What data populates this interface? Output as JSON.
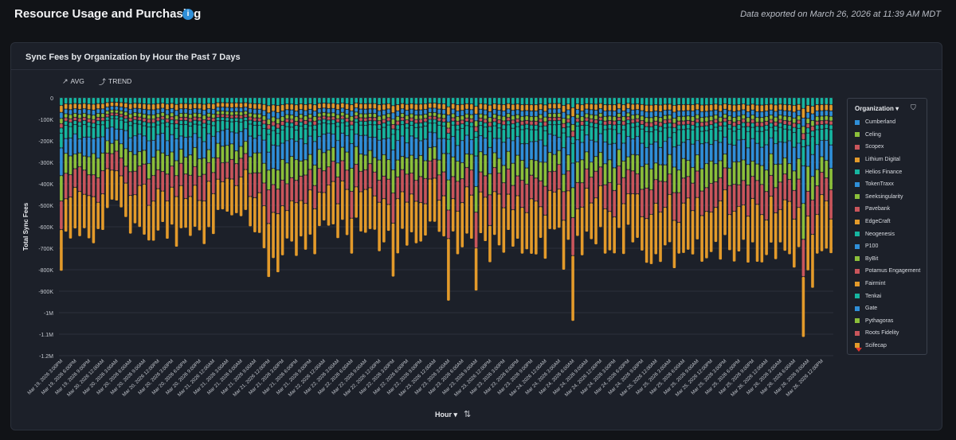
{
  "header": {
    "title": "Resource Usage and Purchasing",
    "info_icon": "i",
    "export_note": "Data exported on March 26, 2026 at 11:39 AM MDT"
  },
  "panel": {
    "title": "Sync Fees by Organization by Hour the Past 7 Days",
    "avg_label": "AVG",
    "trend_label": "TREND",
    "x_control_label": "Hour",
    "x_control_caret": "▾",
    "sort_icon": "⇅",
    "legend_title": "Organization",
    "legend_caret": "▾",
    "filter_icon": "⛉"
  },
  "chart_data": {
    "type": "bar",
    "stacked": true,
    "ylabel": "Total Sync Fees",
    "ylim": [
      -1200000,
      0
    ],
    "yticks": [
      0,
      -100000,
      -200000,
      -300000,
      -400000,
      -500000,
      -600000,
      -700000,
      -800000,
      -900000,
      -1000000,
      -1100000,
      -1200000
    ],
    "ytick_labels": [
      "0",
      "-100K",
      "-200K",
      "-300K",
      "-400K",
      "-500K",
      "-600K",
      "-700K",
      "-800K",
      "-900K",
      "-1M",
      "-1.1M",
      "-1.2M"
    ],
    "grid": true,
    "legend_position": "right",
    "bar_count": 168,
    "x_tick_labels": [
      "Mar 19, 2026 3:00PM",
      "Mar 19, 2026 6:00PM",
      "Mar 19, 2026 9:00PM",
      "Mar 20, 2026 12:00AM",
      "Mar 20, 2026 3:00AM",
      "Mar 20, 2026 6:00AM",
      "Mar 20, 2026 9:00AM",
      "Mar 20, 2026 12:00PM",
      "Mar 20, 2026 3:00PM",
      "Mar 20, 2026 6:00PM",
      "Mar 20, 2026 9:00PM",
      "Mar 21, 2026 12:00AM",
      "Mar 21, 2026 3:00AM",
      "Mar 21, 2026 6:00AM",
      "Mar 21, 2026 9:00AM",
      "Mar 21, 2026 12:00PM",
      "Mar 21, 2026 3:00PM",
      "Mar 21, 2026 6:00PM",
      "Mar 21, 2026 9:00PM",
      "Mar 22, 2026 12:00AM",
      "Mar 22, 2026 3:00AM",
      "Mar 22, 2026 6:00AM",
      "Mar 22, 2026 9:00AM",
      "Mar 22, 2026 12:00PM",
      "Mar 22, 2026 3:00PM",
      "Mar 22, 2026 6:00PM",
      "Mar 22, 2026 9:00PM",
      "Mar 23, 2026 12:00AM",
      "Mar 23, 2026 3:00AM",
      "Mar 23, 2026 6:00AM",
      "Mar 23, 2026 9:00AM",
      "Mar 23, 2026 12:00PM",
      "Mar 23, 2026 3:00PM",
      "Mar 23, 2026 6:00PM",
      "Mar 23, 2026 9:00PM",
      "Mar 24, 2026 12:00AM",
      "Mar 24, 2026 3:00AM",
      "Mar 24, 2026 6:00AM",
      "Mar 24, 2026 9:00AM",
      "Mar 24, 2026 12:00PM",
      "Mar 24, 2026 3:00PM",
      "Mar 24, 2026 6:00PM",
      "Mar 24, 2026 9:00PM",
      "Mar 25, 2026 12:00AM",
      "Mar 25, 2026 3:00AM",
      "Mar 25, 2026 6:00AM",
      "Mar 25, 2026 9:00AM",
      "Mar 25, 2026 12:00PM",
      "Mar 25, 2026 3:00PM",
      "Mar 25, 2026 6:00PM",
      "Mar 25, 2026 9:00PM",
      "Mar 26, 2026 12:00AM",
      "Mar 26, 2026 3:00AM",
      "Mar 26, 2026 6:00AM",
      "Mar 26, 2026 9:00AM",
      "Mar 26, 2026 12:00PM"
    ],
    "hour_totals": [
      -807,
      -625,
      -657,
      -610,
      -646,
      -609,
      -656,
      -679,
      -613,
      -617,
      -515,
      -476,
      -480,
      -512,
      -557,
      -634,
      -586,
      -603,
      -639,
      -666,
      -667,
      -620,
      -580,
      -658,
      -592,
      -695,
      -609,
      -607,
      -645,
      -602,
      -619,
      -683,
      -604,
      -636,
      -524,
      -521,
      -532,
      -549,
      -539,
      -553,
      -524,
      -600,
      -628,
      -631,
      -702,
      -836,
      -748,
      -814,
      -735,
      -657,
      -671,
      -738,
      -647,
      -709,
      -639,
      -730,
      -599,
      -573,
      -597,
      -591,
      -655,
      -570,
      -641,
      -727,
      -560,
      -624,
      -630,
      -613,
      -616,
      -716,
      -675,
      -621,
      -834,
      -726,
      -612,
      -690,
      -628,
      -679,
      -671,
      -643,
      -578,
      -579,
      -626,
      -647,
      -946,
      -624,
      -730,
      -698,
      -634,
      -658,
      -899,
      -632,
      -669,
      -767,
      -640,
      -689,
      -723,
      -617,
      -695,
      -658,
      -727,
      -707,
      -728,
      -731,
      -654,
      -751,
      -613,
      -615,
      -607,
      -802,
      -663,
      -1040,
      -645,
      -735,
      -625,
      -660,
      -684,
      -604,
      -727,
      -712,
      -726,
      -608,
      -729,
      -593,
      -675,
      -654,
      -713,
      -770,
      -776,
      -730,
      -766,
      -689,
      -674,
      -795,
      -727,
      -724,
      -709,
      -731,
      -661,
      -765,
      -749,
      -720,
      -673,
      -755,
      -641,
      -711,
      -764,
      -717,
      -663,
      -769,
      -675,
      -765,
      -768,
      -734,
      -676,
      -753,
      -675,
      -714,
      -730,
      -792,
      -697,
      -1115,
      -805,
      -886,
      -727,
      -716,
      -704,
      -725
    ],
    "hour_totals_unit": "thousands",
    "series": [
      {
        "name": "Cumberland",
        "color": "#2f8fd8"
      },
      {
        "name": "Celing",
        "color": "#8bbf3a"
      },
      {
        "name": "Scopex",
        "color": "#c9555b"
      },
      {
        "name": "Lithium Digital",
        "color": "#e39a2a"
      },
      {
        "name": "Helios Finance",
        "color": "#16b5a0"
      },
      {
        "name": "TokenTraxx",
        "color": "#2f8fd8"
      },
      {
        "name": "Seeksingularity",
        "color": "#8bbf3a"
      },
      {
        "name": "Pavebank",
        "color": "#c9555b"
      },
      {
        "name": "EdgeCraft",
        "color": "#e39a2a"
      },
      {
        "name": "Neogenesis",
        "color": "#16b5a0"
      },
      {
        "name": "P100",
        "color": "#2f8fd8"
      },
      {
        "name": "ByBit",
        "color": "#8bbf3a"
      },
      {
        "name": "Potamus Engagement",
        "color": "#c9555b"
      },
      {
        "name": "Fairmint",
        "color": "#e39a2a"
      },
      {
        "name": "Tenkai",
        "color": "#16b5a0"
      },
      {
        "name": "Gate",
        "color": "#2f8fd8"
      },
      {
        "name": "Pythagoras",
        "color": "#8bbf3a"
      },
      {
        "name": "Roots Fidelity",
        "color": "#c9555b"
      },
      {
        "name": "Scifecap",
        "color": "#e39a2a"
      }
    ]
  }
}
